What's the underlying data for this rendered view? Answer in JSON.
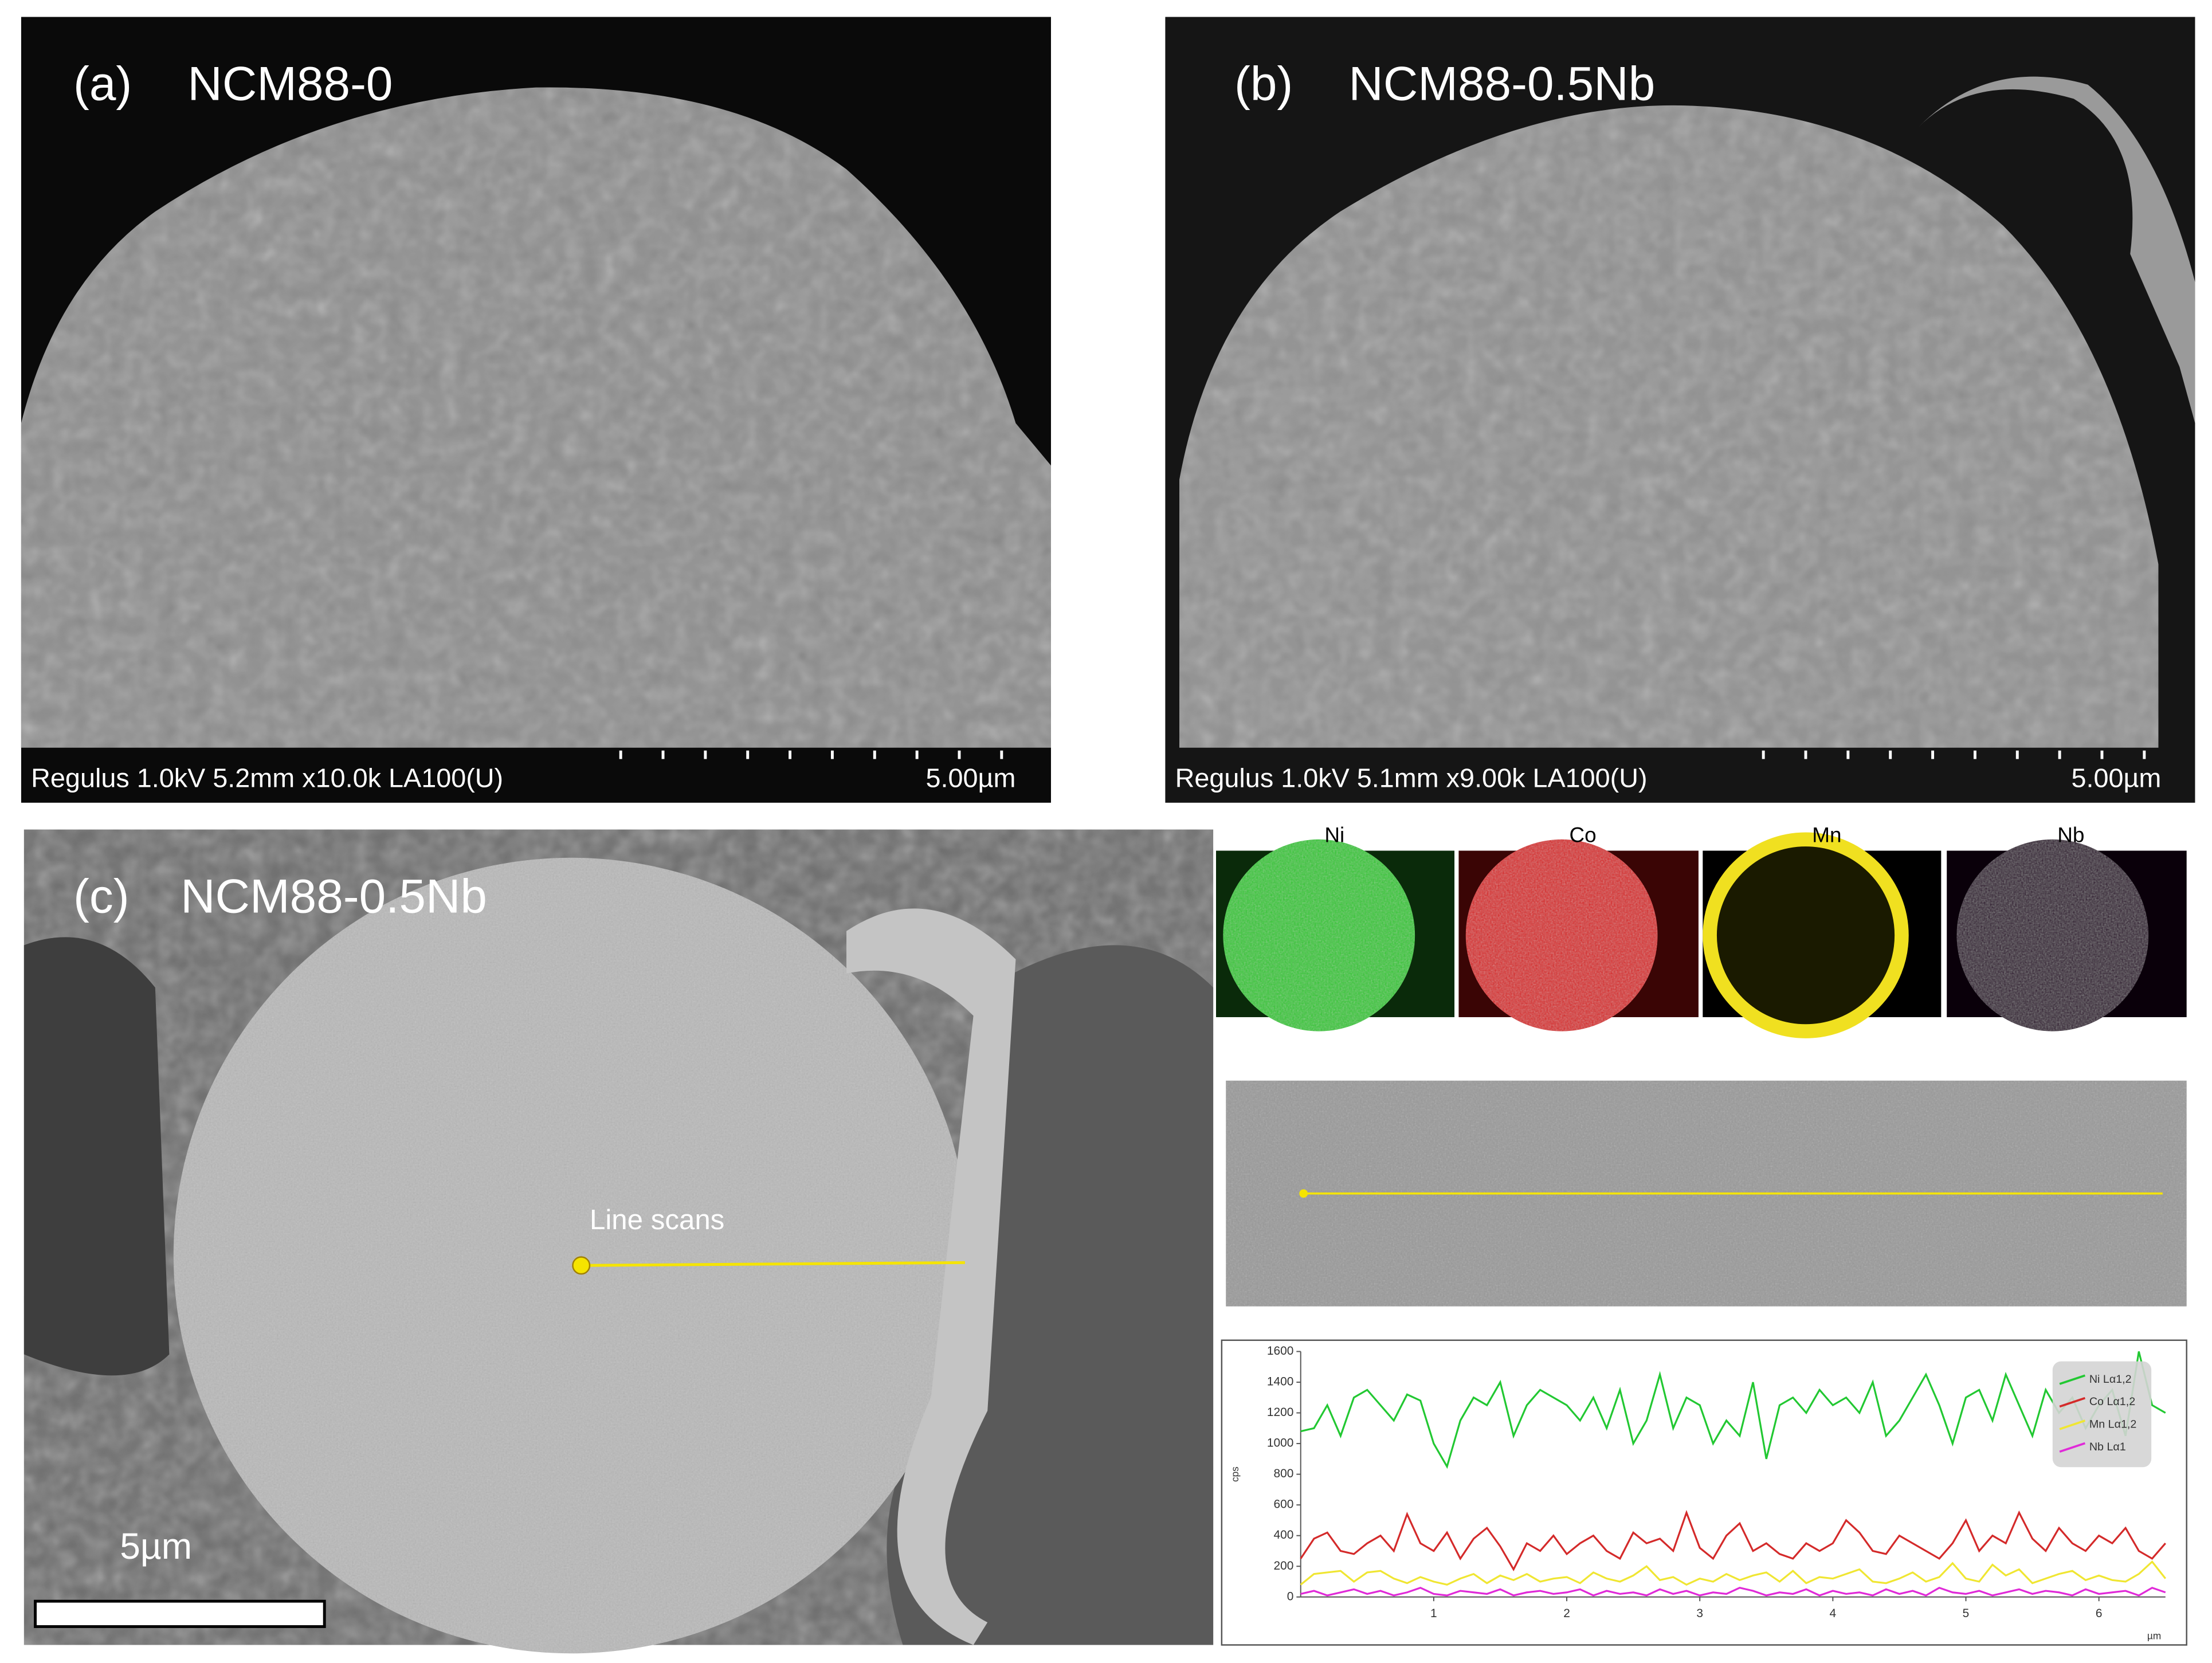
{
  "panels": [
    {
      "label": "(a)",
      "title": "NCM88-0",
      "info": "Regulus 1.0kV 5.2mm x10.0k LA100(U)",
      "scale": "5.00µm"
    },
    {
      "label": "(b)",
      "title": "NCM88-0.5Nb",
      "info": "Regulus 1.0kV 5.1mm x9.00k LA100(U)",
      "scale": "5.00µm"
    },
    {
      "label": "(c)",
      "title": "NCM88-0.5Nb",
      "annotation": "Line scans",
      "scale": "5µm"
    }
  ],
  "maps": [
    "Ni",
    "Co",
    "Mn",
    "Nb"
  ],
  "chart_data": {
    "type": "line",
    "ylabel": "cps",
    "xlabel": "µm",
    "x": [
      0,
      0.1,
      0.2,
      0.3,
      0.4,
      0.5,
      0.6,
      0.7,
      0.8,
      0.9,
      1,
      1.1,
      1.2,
      1.3,
      1.4,
      1.5,
      1.6,
      1.7,
      1.8,
      1.9,
      2,
      2.1,
      2.2,
      2.3,
      2.4,
      2.5,
      2.6,
      2.7,
      2.8,
      2.9,
      3,
      3.1,
      3.2,
      3.3,
      3.4,
      3.5,
      3.6,
      3.7,
      3.8,
      3.9,
      4,
      4.1,
      4.2,
      4.3,
      4.4,
      4.5,
      4.6,
      4.7,
      4.8,
      4.9,
      5,
      5.1,
      5.2,
      5.3,
      5.4,
      5.5,
      5.6,
      5.7,
      5.8,
      5.9,
      6,
      6.1,
      6.2,
      6.3,
      6.4,
      6.5
    ],
    "series": [
      {
        "name": "Ni Lα1,2",
        "color": "#22c832",
        "values": [
          1080,
          1100,
          1250,
          1050,
          1300,
          1350,
          1250,
          1150,
          1320,
          1280,
          1000,
          850,
          1150,
          1300,
          1250,
          1400,
          1050,
          1250,
          1350,
          1300,
          1250,
          1150,
          1300,
          1100,
          1350,
          1000,
          1150,
          1450,
          1100,
          1300,
          1250,
          1000,
          1150,
          1050,
          1400,
          900,
          1250,
          1300,
          1200,
          1350,
          1250,
          1300,
          1200,
          1400,
          1050,
          1150,
          1300,
          1450,
          1250,
          1000,
          1300,
          1350,
          1150,
          1450,
          1250,
          1050,
          1350,
          1200,
          1300,
          1100,
          1250,
          1350,
          1050,
          1600,
          1250,
          1200
        ]
      },
      {
        "name": "Co Lα1,2",
        "color": "#d42a2a",
        "values": [
          250,
          380,
          420,
          300,
          280,
          350,
          400,
          300,
          540,
          350,
          300,
          420,
          250,
          380,
          450,
          330,
          180,
          350,
          300,
          400,
          280,
          350,
          400,
          300,
          250,
          420,
          350,
          380,
          300,
          550,
          320,
          250,
          400,
          480,
          300,
          350,
          280,
          250,
          350,
          300,
          350,
          500,
          420,
          300,
          280,
          400,
          350,
          300,
          250,
          350,
          500,
          300,
          400,
          350,
          550,
          380,
          300,
          450,
          350,
          300,
          400,
          350,
          450,
          300,
          250,
          350
        ]
      },
      {
        "name": "Mn Lα1,2",
        "color": "#f0e632",
        "values": [
          80,
          150,
          160,
          170,
          100,
          160,
          170,
          120,
          90,
          130,
          100,
          80,
          120,
          150,
          90,
          140,
          110,
          150,
          100,
          120,
          130,
          90,
          160,
          120,
          100,
          140,
          200,
          110,
          130,
          80,
          120,
          100,
          150,
          110,
          140,
          160,
          100,
          170,
          90,
          130,
          120,
          150,
          180,
          100,
          90,
          120,
          160,
          100,
          130,
          220,
          120,
          100,
          210,
          140,
          180,
          90,
          120,
          150,
          170,
          110,
          140,
          110,
          100,
          150,
          230,
          120
        ]
      },
      {
        "name": "Nb Lα1",
        "color": "#e02ad8",
        "values": [
          20,
          40,
          10,
          30,
          50,
          20,
          40,
          10,
          30,
          60,
          20,
          10,
          40,
          30,
          20,
          50,
          10,
          30,
          40,
          20,
          30,
          50,
          10,
          40,
          20,
          30,
          10,
          50,
          20,
          40,
          10,
          30,
          20,
          60,
          40,
          10,
          30,
          20,
          50,
          10,
          40,
          20,
          30,
          10,
          50,
          20,
          40,
          10,
          60,
          30,
          20,
          40,
          10,
          30,
          50,
          20,
          40,
          30,
          10,
          50,
          20,
          30,
          40,
          10,
          60,
          30
        ]
      }
    ],
    "xlim": [
      0,
      6.5
    ],
    "xticks": [
      1,
      2,
      3,
      4,
      5,
      6
    ],
    "ylim": [
      0,
      1600
    ],
    "yticks": [
      0,
      200,
      400,
      600,
      800,
      1000,
      1200,
      1400,
      1600
    ]
  }
}
